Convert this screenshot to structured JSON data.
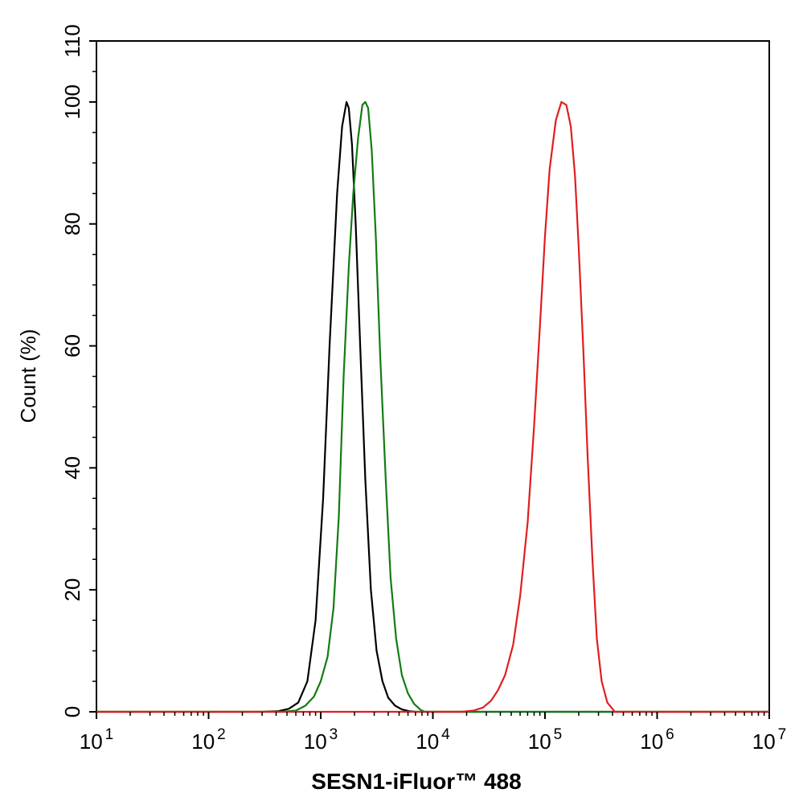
{
  "chart_data": {
    "type": "line",
    "xscale": "log",
    "xlim": [
      10,
      10000000
    ],
    "ylim": [
      0,
      110
    ],
    "xlabel": "SESN1-iFluor™ 488",
    "ylabel": "Count  (%)",
    "grid": false,
    "x_ticks": [
      {
        "value": 10,
        "base": "10",
        "exp": "1"
      },
      {
        "value": 100,
        "base": "10",
        "exp": "2"
      },
      {
        "value": 1000,
        "base": "10",
        "exp": "3"
      },
      {
        "value": 10000,
        "base": "10",
        "exp": "4"
      },
      {
        "value": 100000,
        "base": "10",
        "exp": "5"
      },
      {
        "value": 1000000,
        "base": "10",
        "exp": "6"
      },
      {
        "value": 10000000,
        "base": "10",
        "exp": "7"
      }
    ],
    "y_ticks": [
      {
        "value": 0,
        "label": "0"
      },
      {
        "value": 20,
        "label": "20"
      },
      {
        "value": 40,
        "label": "40"
      },
      {
        "value": 60,
        "label": "60"
      },
      {
        "value": 80,
        "label": "80"
      },
      {
        "value": 100,
        "label": "100"
      },
      {
        "value": 110,
        "label": "110"
      }
    ],
    "series": [
      {
        "color": "#000000",
        "x": [
          10,
          300,
          420,
          520,
          630,
          760,
          900,
          1050,
          1200,
          1400,
          1550,
          1700,
          1780,
          1900,
          2050,
          2250,
          2500,
          2800,
          3150,
          3550,
          4000,
          4600,
          5300,
          6100,
          7000,
          10000000
        ],
        "y": [
          0,
          0,
          0.1,
          0.5,
          1.5,
          5,
          15,
          35,
          60,
          85,
          96,
          100,
          99,
          93,
          80,
          60,
          38,
          20,
          10,
          5,
          2.3,
          1,
          0.4,
          0.1,
          0,
          0
        ]
      },
      {
        "color": "#137c13",
        "x": [
          10,
          450,
          600,
          730,
          870,
          1000,
          1150,
          1300,
          1450,
          1600,
          1780,
          1950,
          2150,
          2350,
          2500,
          2650,
          2850,
          3100,
          3400,
          3800,
          4200,
          4700,
          5300,
          6000,
          6800,
          7800,
          8500,
          10000000
        ],
        "y": [
          0,
          0,
          0.2,
          1,
          2.5,
          5,
          9,
          17,
          32,
          55,
          73,
          85,
          94,
          99.5,
          100,
          99,
          92,
          78,
          58,
          38,
          22,
          12,
          6,
          3,
          1.3,
          0.3,
          0,
          0
        ]
      },
      {
        "color": "#e01e1e",
        "x": [
          10,
          18000,
          23000,
          28000,
          33000,
          38000,
          44000,
          52000,
          60000,
          70000,
          80000,
          90000,
          100000,
          110000,
          125000,
          140000,
          155000,
          170000,
          185000,
          200000,
          220000,
          240000,
          265000,
          290000,
          320000,
          360000,
          420000,
          10000000
        ],
        "y": [
          0,
          0,
          0.2,
          0.7,
          1.8,
          3.5,
          6,
          11,
          19,
          31,
          47,
          63,
          78,
          89,
          97,
          100,
          99.5,
          96,
          88,
          76,
          59,
          42,
          25,
          12,
          5,
          1.5,
          0,
          0
        ]
      }
    ]
  }
}
